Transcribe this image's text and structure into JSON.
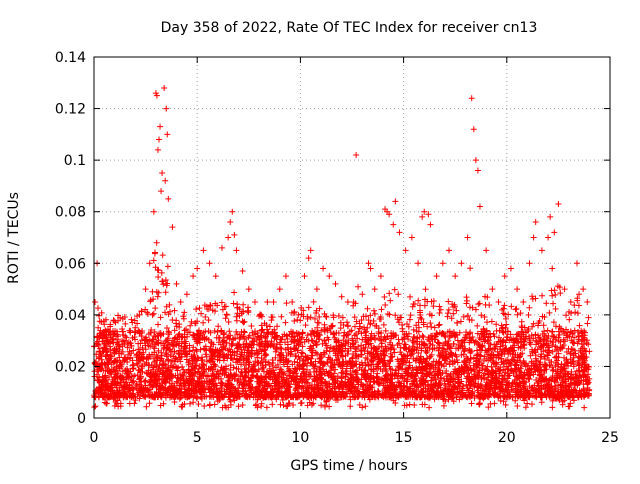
{
  "chart_data": {
    "type": "scatter",
    "title": "Day 358 of 2022, Rate Of TEC Index for receiver cn13",
    "xlabel": "GPS time / hours",
    "ylabel": "ROTI / TECUs",
    "xlim": [
      0,
      25
    ],
    "ylim": [
      0,
      0.14
    ],
    "x_ticks": [
      0,
      5,
      10,
      15,
      20,
      25
    ],
    "y_ticks": [
      0,
      0.02,
      0.04,
      0.06,
      0.08,
      0.1,
      0.12,
      0.14
    ],
    "x_tick_labels": [
      "0",
      "5",
      "10",
      "15",
      "20",
      "25"
    ],
    "y_tick_labels": [
      "0",
      "0.02",
      "0.04",
      "0.06",
      "0.08",
      "0.1",
      "0.12",
      "0.14"
    ],
    "grid": true,
    "marker": "+",
    "marker_color": "#ff0000",
    "series": [
      {
        "name": "cn13",
        "x": [
          0.05,
          0.15,
          0.2,
          0.3,
          0.45,
          0.6,
          0.8,
          1.0,
          1.2,
          1.5,
          1.8,
          2.0,
          2.2,
          2.5,
          2.7,
          2.9,
          3.0,
          3.1,
          3.2,
          3.3,
          3.4,
          3.5,
          3.6,
          3.8,
          4.0,
          4.2,
          4.5,
          4.8,
          5.0,
          5.3,
          5.6,
          5.9,
          6.2,
          6.5,
          6.7,
          6.9,
          7.2,
          7.5,
          7.8,
          8.1,
          8.4,
          8.7,
          9.0,
          9.3,
          9.6,
          9.9,
          10.2,
          10.5,
          10.8,
          11.1,
          11.4,
          11.7,
          12.0,
          12.3,
          12.7,
          13.0,
          13.3,
          13.6,
          13.9,
          14.2,
          14.5,
          14.8,
          15.1,
          15.4,
          15.7,
          16.0,
          16.3,
          16.6,
          16.9,
          17.2,
          17.5,
          17.8,
          18.1,
          18.3,
          18.5,
          18.7,
          19.0,
          19.3,
          19.6,
          19.9,
          20.2,
          20.5,
          20.8,
          21.1,
          21.4,
          21.7,
          22.0,
          22.2,
          22.5,
          22.8,
          23.1,
          23.4,
          23.7,
          23.9,
          3.05,
          3.15,
          3.25,
          3.45,
          3.55,
          6.6,
          6.8,
          14.1,
          14.3,
          14.6,
          15.9,
          16.2,
          18.4,
          18.6,
          21.3,
          22.1,
          22.3,
          23.5,
          10.4,
          13.4
        ],
        "y": [
          0.045,
          0.06,
          0.035,
          0.02,
          0.015,
          0.012,
          0.018,
          0.022,
          0.025,
          0.03,
          0.028,
          0.035,
          0.04,
          0.05,
          0.06,
          0.08,
          0.126,
          0.104,
          0.113,
          0.095,
          0.128,
          0.12,
          0.085,
          0.074,
          0.052,
          0.045,
          0.048,
          0.055,
          0.058,
          0.065,
          0.06,
          0.055,
          0.066,
          0.07,
          0.08,
          0.065,
          0.057,
          0.05,
          0.045,
          0.04,
          0.045,
          0.045,
          0.05,
          0.055,
          0.045,
          0.04,
          0.055,
          0.065,
          0.05,
          0.058,
          0.055,
          0.052,
          0.047,
          0.045,
          0.102,
          0.048,
          0.06,
          0.05,
          0.055,
          0.08,
          0.075,
          0.072,
          0.065,
          0.07,
          0.06,
          0.08,
          0.075,
          0.055,
          0.06,
          0.065,
          0.055,
          0.06,
          0.07,
          0.124,
          0.1,
          0.082,
          0.065,
          0.05,
          0.045,
          0.055,
          0.058,
          0.05,
          0.045,
          0.06,
          0.076,
          0.065,
          0.07,
          0.058,
          0.083,
          0.05,
          0.045,
          0.06,
          0.05,
          0.045,
          0.125,
          0.108,
          0.088,
          0.092,
          0.11,
          0.076,
          0.071,
          0.081,
          0.079,
          0.084,
          0.078,
          0.079,
          0.112,
          0.096,
          0.07,
          0.078,
          0.072,
          0.048,
          0.062,
          0.058
        ]
      }
    ],
    "dense_band": {
      "x_range": [
        0,
        24
      ],
      "typical_min": 0.004,
      "typical_max": 0.04,
      "median": 0.015
    }
  }
}
